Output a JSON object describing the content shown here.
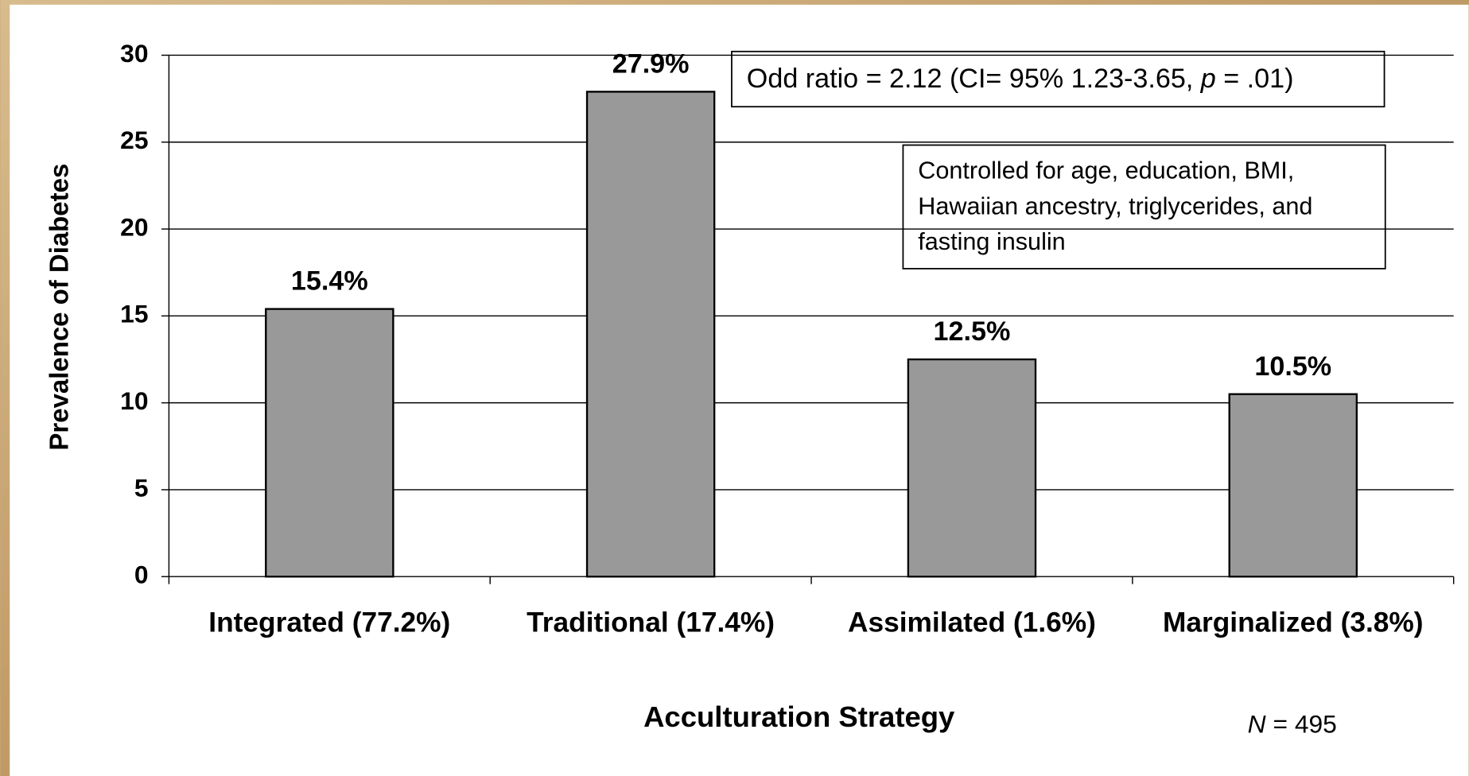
{
  "chart_data": {
    "type": "bar",
    "categories": [
      "Integrated (77.2%)",
      "Traditional (17.4%)",
      "Assimilated (1.6%)",
      "Marginalized (3.8%)"
    ],
    "values": [
      15.4,
      27.9,
      12.5,
      10.5
    ],
    "value_labels": [
      "15.4%",
      "27.9%",
      "12.5%",
      "10.5%"
    ],
    "color": "#999999",
    "ylim": [
      0,
      30
    ],
    "yticks": [
      0,
      5,
      10,
      15,
      20,
      25,
      30
    ],
    "grid": true,
    "ylabel": "Prevalence of Diabetes",
    "xlabel": "Acculturation Strategy",
    "annotations": {
      "odds_ratio": {
        "before": "Odd ratio = 2.12 (CI= 95% 1.23-3.65, ",
        "italic": "p",
        "after": " = .01)"
      },
      "controls": [
        "Controlled for age, education, BMI,",
        "Hawaiian ancestry, triglycerides, and",
        "fasting insulin"
      ],
      "sample": {
        "italic": "N",
        "after": " = 495"
      }
    }
  }
}
